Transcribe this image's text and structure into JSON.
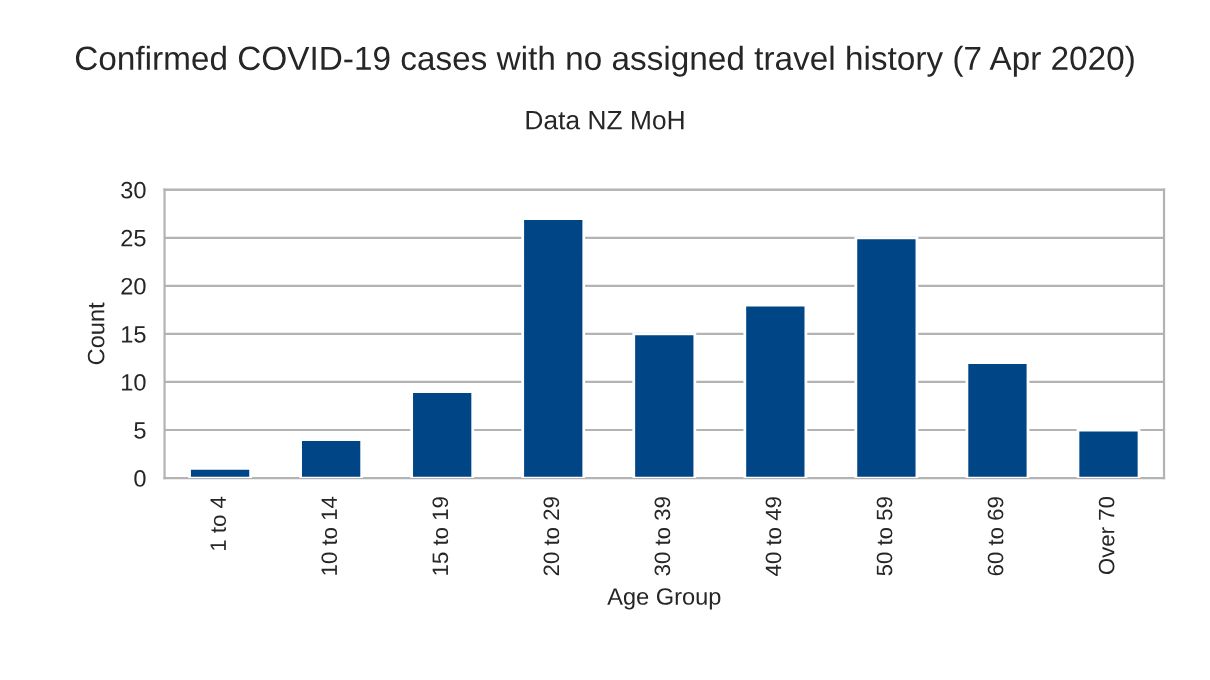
{
  "chart_data": {
    "type": "bar",
    "title": "Confirmed COVID-19 cases with no assigned travel history (7 Apr 2020)",
    "subtitle": "Data NZ MoH",
    "xlabel": "Age Group",
    "ylabel": "Count",
    "categories": [
      "1 to 4",
      "10 to 14",
      "15 to 19",
      "20 to 29",
      "30 to 39",
      "40 to 49",
      "50 to 59",
      "60 to 69",
      "Over 70"
    ],
    "values": [
      1,
      4,
      9,
      27,
      15,
      18,
      25,
      12,
      5
    ],
    "color": "#004586",
    "ylim": [
      0,
      30
    ],
    "yticks": [
      0,
      5,
      10,
      15,
      20,
      25,
      30
    ],
    "grid": "y",
    "legend": false
  }
}
